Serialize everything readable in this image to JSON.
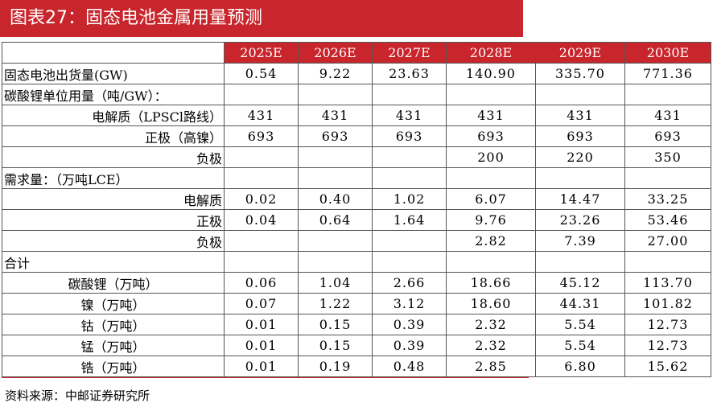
{
  "title": "图表27：固态电池金属用量预测",
  "columns": [
    "2025E",
    "2026E",
    "2027E",
    "2028E",
    "2029E",
    "2030E"
  ],
  "rows": [
    {
      "label": "固态电池出货量(GW)",
      "align": "left",
      "values": [
        "0.54",
        "9.22",
        "23.63",
        "140.90",
        "335.70",
        "771.36"
      ]
    },
    {
      "label": "碳酸锂单位用量（吨/GW）：",
      "align": "left",
      "values": [
        "",
        "",
        "",
        "",
        "",
        ""
      ]
    },
    {
      "label": "电解质（LPSCl路线）",
      "align": "right",
      "values": [
        "431",
        "431",
        "431",
        "431",
        "431",
        "431"
      ]
    },
    {
      "label": "正极（高镍）",
      "align": "right",
      "values": [
        "693",
        "693",
        "693",
        "693",
        "693",
        "693"
      ]
    },
    {
      "label": "负极",
      "align": "right",
      "values": [
        "",
        "",
        "",
        "200",
        "220",
        "350"
      ]
    },
    {
      "label": "需求量：（万吨LCE）",
      "align": "left",
      "values": [
        "",
        "",
        "",
        "",
        "",
        ""
      ]
    },
    {
      "label": "电解质",
      "align": "right",
      "values": [
        "0.02",
        "0.40",
        "1.02",
        "6.07",
        "14.47",
        "33.25"
      ]
    },
    {
      "label": "正极",
      "align": "right",
      "values": [
        "0.04",
        "0.64",
        "1.64",
        "9.76",
        "23.26",
        "53.46"
      ]
    },
    {
      "label": "负极",
      "align": "right",
      "values": [
        "",
        "",
        "",
        "2.82",
        "7.39",
        "27.00"
      ]
    },
    {
      "label": "合计",
      "align": "left",
      "values": [
        "",
        "",
        "",
        "",
        "",
        ""
      ]
    },
    {
      "label": "碳酸锂（万吨）",
      "align": "center",
      "values": [
        "0.06",
        "1.04",
        "2.66",
        "18.66",
        "45.12",
        "113.70"
      ]
    },
    {
      "label": "镍（万吨）",
      "align": "center",
      "values": [
        "0.07",
        "1.22",
        "3.12",
        "18.60",
        "44.31",
        "101.82"
      ]
    },
    {
      "label": "钴（万吨）",
      "align": "center",
      "values": [
        "0.01",
        "0.15",
        "0.39",
        "2.32",
        "5.54",
        "12.73"
      ]
    },
    {
      "label": "锰（万吨）",
      "align": "center",
      "values": [
        "0.01",
        "0.15",
        "0.39",
        "2.32",
        "5.54",
        "12.73"
      ]
    },
    {
      "label": "锆（万吨）",
      "align": "center",
      "values": [
        "0.01",
        "0.19",
        "0.48",
        "2.85",
        "6.80",
        "15.62"
      ]
    }
  ],
  "source": "资料来源：中邮证券研究所"
}
